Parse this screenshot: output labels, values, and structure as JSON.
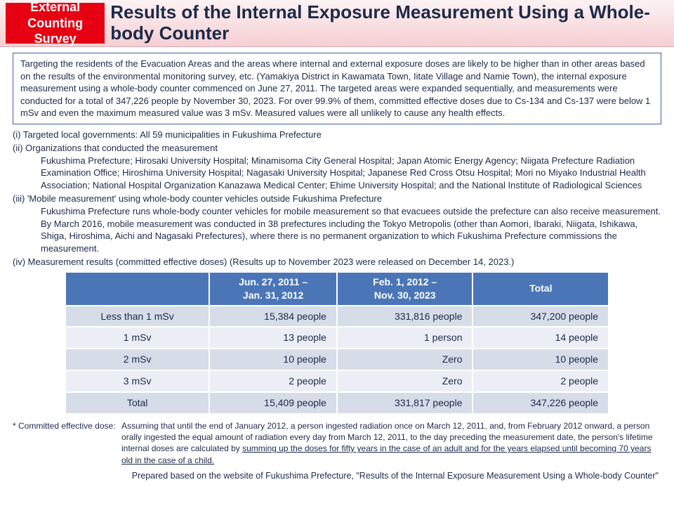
{
  "header": {
    "badge_line1": "External",
    "badge_line2": "Counting Survey",
    "title": "Results of the Internal Exposure Measurement Using a Whole-body Counter"
  },
  "intro": "Targeting the residents of the Evacuation Areas and the areas where internal and external exposure doses are likely to be higher than in other areas based on the results of the environmental monitoring survey, etc. (Yamakiya District in Kawamata Town, Iitate Village and Namie Town), the internal exposure measurement using a whole-body counter commenced on June 27, 2011. The targeted areas were expanded sequentially, and measurements were conducted for a total of 347,226 people by November 30, 2023. For over 99.9% of them, committed effective doses due to Cs-134 and Cs-137 were below 1 mSv and even the maximum measured value was 3 mSv. Measured values were all unlikely to cause any health effects.",
  "items": {
    "i_head": "(i) Targeted local governments: All 59 municipalities in Fukushima Prefecture",
    "ii_head": "(ii) Organizations that conducted the measurement",
    "ii_body": "Fukushima Prefecture; Hirosaki University Hospital; Minamisoma City General Hospital; Japan Atomic Energy Agency; Niigata Prefecture Radiation Examination Office; Hiroshima University Hospital; Nagasaki University Hospital; Japanese Red Cross Otsu Hospital; Mori no Miyako Industrial Health Association; National Hospital Organization Kanazawa Medical Center; Ehime University Hospital; and the National Institute of Radiological Sciences",
    "iii_head": "(iii) 'Mobile measurement' using whole-body counter vehicles outside Fukushima Prefecture",
    "iii_body": "Fukushima Prefecture runs whole-body counter vehicles for mobile measurement so that evacuees outside the prefecture can also receive measurement. By March 2016, mobile measurement was conducted in 38 prefectures including the Tokyo Metropolis (other than Aomori, Ibaraki, Niigata, Ishikawa, Shiga, Hiroshima, Aichi and Nagasaki Prefectures), where there is no permanent organization to which Fukushima Prefecture commissions the measurement.",
    "iv_head": "(iv) Measurement results (committed effective doses) (Results up to November 2023 were released on December 14, 2023.)"
  },
  "table": {
    "headers": {
      "col1": "Jun. 27, 2011 –\nJan. 31, 2012",
      "col2": "Feb. 1, 2012 –\nNov. 30, 2023",
      "col3": "Total"
    },
    "rows": [
      {
        "label": "Less than 1 mSv",
        "c1": "15,384 people",
        "c2": "331,816 people",
        "c3": "347,200 people"
      },
      {
        "label": "1 mSv",
        "c1": "13 people",
        "c2": "1 person",
        "c3": "14 people"
      },
      {
        "label": "2 mSv",
        "c1": "10 people",
        "c2": "Zero",
        "c3": "10 people"
      },
      {
        "label": "3 mSv",
        "c1": "2 people",
        "c2": "Zero",
        "c3": "2 people"
      },
      {
        "label": "Total",
        "c1": "15,409 people",
        "c2": "331,817 people",
        "c3": "347,226 people"
      }
    ]
  },
  "footnote": {
    "label": "* Committed effective dose:",
    "body_a": "Assuming that until the end of January 2012, a person ingested radiation once on March 12, 2011, and, from February 2012 onward, a person orally ingested the equal amount of radiation every day from March 12, 2011, to the day preceding the measurement date, the person's lifetime internal doses are calculated by ",
    "body_u": "summing up the doses for fifty years in the case of an adult and for the years elapsed until becoming 70 years old in the case of a child.",
    "body_c": ""
  },
  "source": "Prepared based on the website of Fukushima Prefecture, \"Results of the Internal Exposure Measurement Using a Whole-body Counter\"",
  "style": {
    "accent_red": "#e60012",
    "header_bg_top": "#fdf2f3",
    "header_bg_bottom": "#f5cfd3",
    "table_header_bg": "#4a76b8",
    "band_a": "#d6dde9",
    "band_b": "#ebeff5",
    "text_color": "#1b2a4a"
  }
}
